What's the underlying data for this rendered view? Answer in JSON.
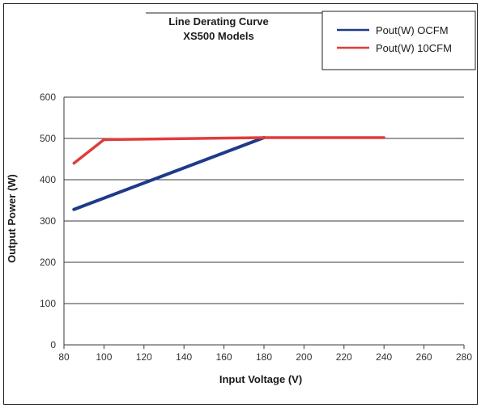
{
  "chart_data": {
    "type": "line",
    "title": "Line Derating Curve",
    "subtitle": "XS500 Models",
    "xlabel": "Input Voltage (V)",
    "ylabel": "Output Power (W)",
    "xlim": [
      80,
      280
    ],
    "ylim": [
      0,
      600
    ],
    "x_ticks": [
      80,
      100,
      120,
      140,
      160,
      180,
      200,
      220,
      240,
      260,
      280
    ],
    "y_ticks": [
      0,
      100,
      200,
      300,
      400,
      500,
      600
    ],
    "grid": true,
    "legend_position": "top-right",
    "series": [
      {
        "name": "Pout(W) OCFM",
        "color": "#1f3a8a",
        "points": [
          [
            85,
            328
          ],
          [
            180,
            502
          ]
        ]
      },
      {
        "name": "Pout(W) 10CFM",
        "color": "#e03c3c",
        "points": [
          [
            85,
            440
          ],
          [
            100,
            497
          ],
          [
            180,
            502
          ],
          [
            240,
            502
          ]
        ]
      }
    ]
  }
}
